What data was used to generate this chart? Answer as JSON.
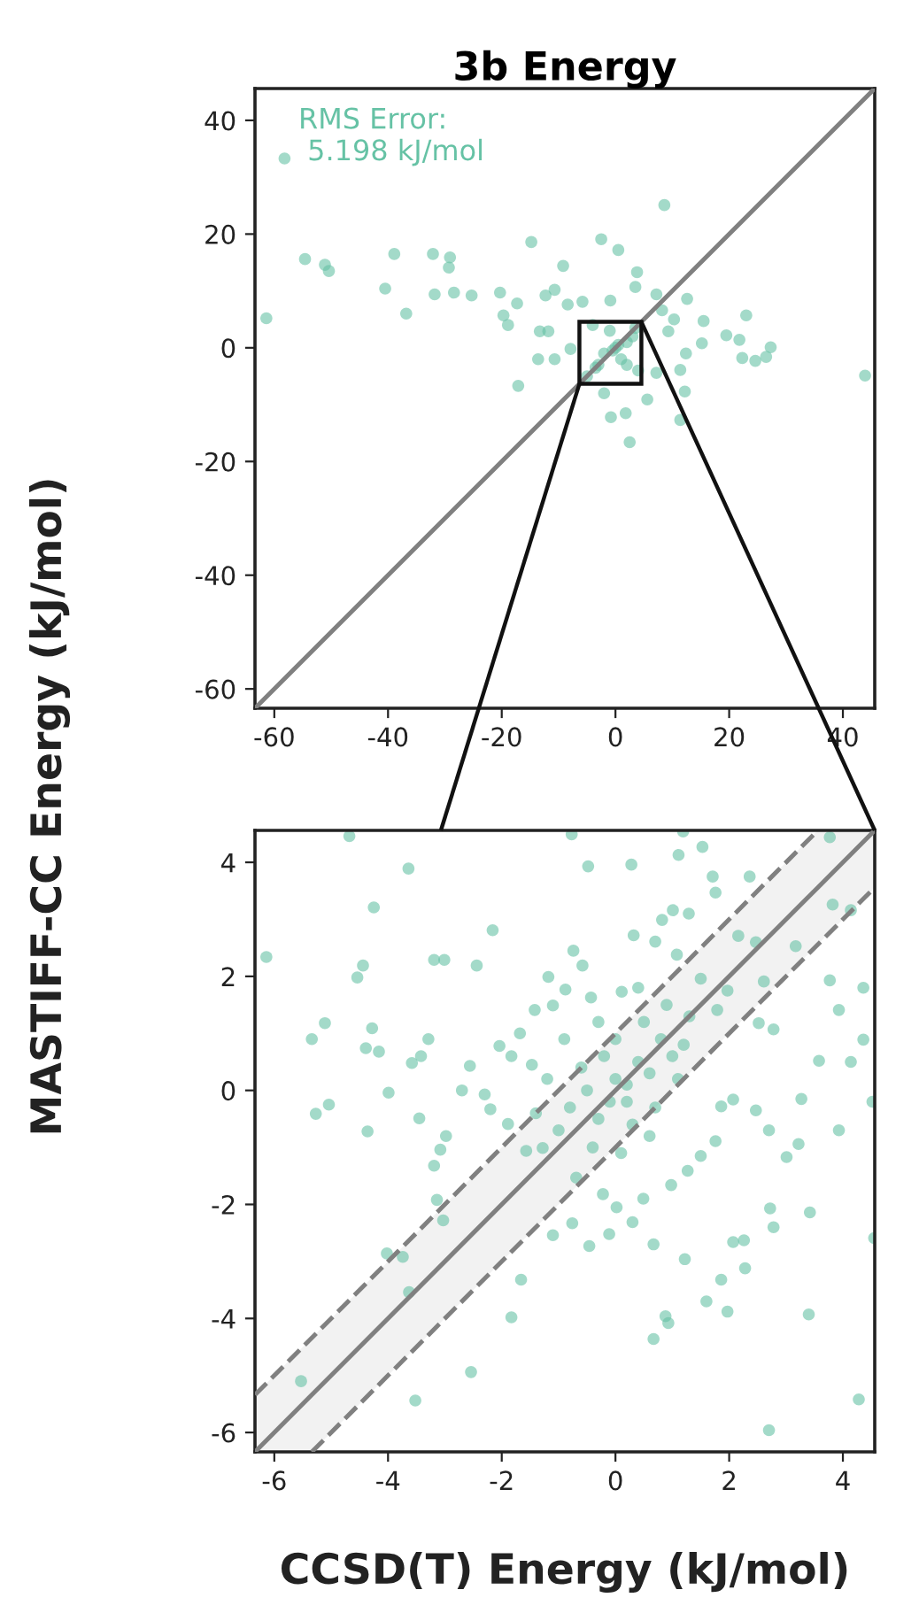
{
  "chart_data": [
    {
      "type": "scatter",
      "title": "3b Energy",
      "ylabel": "MASTIFF-CC Energy (kJ/mol)",
      "annotations": [
        "RMS Error:\n 5.198 kJ/mol"
      ],
      "xlim": [
        -63.4,
        45.6
      ],
      "ylim": [
        -63.4,
        45.6
      ],
      "xticks": [
        -60,
        -40,
        -20,
        0,
        20,
        40
      ],
      "yticks": [
        40,
        20,
        0,
        -20,
        -40,
        -60
      ],
      "grid": false,
      "series": [
        {
          "type": "scatter",
          "marker": "circle",
          "color": "#66c2a5",
          "x": [
            -58.2,
            -61.4,
            -54.6,
            -51.1,
            -50.4,
            -40.5,
            -38.9,
            -36.8,
            -32.1,
            -29.1,
            -29.3,
            -31.8,
            -28.4,
            -25.3,
            -20.3,
            -14.8,
            -17.3,
            -19.7,
            -18.9,
            -17.1,
            -12.3,
            -10.7,
            -9.2,
            -2.5,
            0.5,
            3.8,
            8.6,
            3.5,
            12.6,
            23.0,
            27.3,
            43.9,
            19.5,
            21.8,
            22.3,
            24.6,
            26.5,
            15.5,
            15.2,
            12.4,
            10.3,
            12.2,
            11.4,
            2.5,
            -0.8,
            1.8,
            -2.0,
            5.6,
            -13.6,
            -10.7,
            -13.3,
            -7.9,
            -8.4,
            -5.8,
            -0.9,
            7.2,
            8.2,
            9.3,
            7.2,
            11.4,
            -11.8,
            0.0,
            2.0,
            -2.0,
            3.0,
            -3.0,
            1.0,
            -1.0,
            4.0,
            -4.0,
            2.0,
            -5.0,
            0.5,
            -0.5,
            3.5,
            -3.5
          ],
          "values": [
            33.3,
            5.2,
            15.6,
            14.6,
            13.5,
            10.4,
            16.5,
            6.0,
            16.5,
            15.9,
            14.1,
            9.4,
            9.7,
            9.2,
            9.7,
            18.6,
            7.8,
            5.7,
            4.0,
            -6.7,
            9.2,
            10.2,
            14.4,
            19.1,
            17.2,
            13.3,
            25.1,
            10.7,
            8.6,
            5.7,
            0.1,
            -4.9,
            2.2,
            1.4,
            -1.8,
            -2.3,
            -1.6,
            4.7,
            0.8,
            -1.0,
            5.0,
            -7.7,
            -12.7,
            -16.6,
            -12.2,
            -11.5,
            -8.0,
            -9.1,
            -2.0,
            -2.0,
            2.9,
            -0.2,
            7.6,
            8.1,
            8.3,
            9.4,
            6.6,
            2.9,
            -4.4,
            -3.9,
            2.9,
            0.0,
            1.0,
            -1.0,
            2.0,
            -3.0,
            -2.0,
            3.0,
            -4.0,
            4.0,
            -3.0,
            -5.0,
            0.5,
            -0.5,
            3.5,
            -3.5
          ]
        },
        {
          "type": "line",
          "color": "#808080",
          "line_style": "solid",
          "x": [
            -63.4,
            45.6
          ],
          "values": [
            -63.4,
            45.6
          ]
        }
      ]
    },
    {
      "type": "scatter",
      "xlabel": "CCSD(T) Energy (kJ/mol)",
      "xlim": [
        -6.34,
        4.56
      ],
      "ylim": [
        -6.34,
        4.56
      ],
      "xticks": [
        -6,
        -4,
        -2,
        0,
        2,
        4
      ],
      "yticks": [
        4,
        2,
        0,
        -2,
        -4,
        -6
      ],
      "grid": false,
      "series": [
        {
          "type": "scatter",
          "marker": "circle",
          "color": "#66c2a5",
          "x": [
            -4.68,
            -0.77,
            1.19,
            -3.64,
            -0.48,
            0.28,
            1.53,
            1.11,
            3.77,
            -4.25,
            -2.16,
            -6.14,
            -4.54,
            -4.44,
            -3.19,
            -3.01,
            -2.44,
            -5.34,
            -5.11,
            -4.28,
            -4.39,
            -4.16,
            -3.58,
            -3.42,
            -3.29,
            -5.27,
            -5.04,
            -4.36,
            -3.99,
            -3.45,
            -2.98,
            -3.08,
            -3.19,
            -3.14,
            -3.03,
            -4.02,
            -3.74,
            -3.63,
            -5.53,
            -2.54,
            -3.52,
            -1.66,
            -1.83,
            -1.1,
            -0.76,
            -0.46,
            -0.11,
            0.3,
            0.67,
            1.22,
            0.88,
            0.93,
            0.67,
            1.86,
            1.6,
            1.97,
            2.07,
            2.26,
            2.28,
            2.72,
            2.78,
            3.42,
            3.4,
            2.7,
            4.28,
            4.55,
            4.52,
            4.36,
            3.77,
            3.93,
            4.36,
            4.14,
            3.58,
            3.93,
            3.27,
            3.22,
            3.01,
            2.7,
            2.47,
            2.07,
            1.86,
            1.76,
            1.5,
            1.27,
            0.98,
            0.49,
            0.02,
            -0.22,
            -0.69,
            -1.28,
            -1.57,
            -1.89,
            -2.2,
            -2.3,
            -2.56,
            -2.7,
            -2.04,
            -1.83,
            -1.47,
            -1.68,
            -1.42,
            -1.1,
            -0.88,
            -1.18,
            -0.74,
            -0.58,
            -0.43,
            0.11,
            0.32,
            0.7,
            0.82,
            1.01,
            1.29,
            1.08,
            1.5,
            1.79,
            1.97,
            2.16,
            2.47,
            2.61,
            2.52,
            2.78,
            3.17,
            2.36,
            1.71,
            1.76,
            3.82,
            4.14,
            -0.8,
            -0.5,
            -0.3,
            0.0,
            0.2,
            0.4,
            0.6,
            0.8,
            1.0,
            -0.6,
            -0.2,
            0.3,
            0.5,
            0.9,
            -1.0,
            -0.4,
            0.1,
            0.7,
            1.2,
            0.0,
            -1.2,
            0.4,
            -0.9,
            1.3,
            0.2,
            -0.1,
            0.6,
            -1.4,
            1.1,
            -0.3
          ],
          "values": [
            4.46,
            4.49,
            4.54,
            3.89,
            3.93,
            3.96,
            4.27,
            4.13,
            4.44,
            3.21,
            2.81,
            2.34,
            1.98,
            2.19,
            2.29,
            2.29,
            2.19,
            0.9,
            1.18,
            1.09,
            0.74,
            0.68,
            0.48,
            0.6,
            0.9,
            -0.41,
            -0.25,
            -0.72,
            -0.04,
            -0.49,
            -0.8,
            -1.04,
            -1.32,
            -1.92,
            -2.28,
            -2.86,
            -2.92,
            -3.54,
            -5.1,
            -4.94,
            -5.44,
            -3.32,
            -3.98,
            -2.54,
            -2.33,
            -2.73,
            -2.52,
            -2.31,
            -2.7,
            -2.96,
            -3.96,
            -4.08,
            -4.36,
            -3.32,
            -3.7,
            -3.88,
            -2.66,
            -2.63,
            -3.12,
            -2.07,
            -2.4,
            -2.14,
            -3.93,
            -5.96,
            -5.42,
            -2.59,
            -0.2,
            0.89,
            1.93,
            1.41,
            1.8,
            0.5,
            0.52,
            -0.7,
            -0.15,
            -0.94,
            -1.17,
            -0.7,
            -0.35,
            -0.16,
            -0.28,
            -0.89,
            -1.15,
            -1.41,
            -1.66,
            -1.9,
            -2.05,
            -1.82,
            -1.53,
            -1.01,
            -1.06,
            -0.59,
            -0.33,
            -0.07,
            0.43,
            0.0,
            0.78,
            0.6,
            0.45,
            1.0,
            1.41,
            1.49,
            1.77,
            1.99,
            2.45,
            2.19,
            1.63,
            1.73,
            2.72,
            2.61,
            2.99,
            3.16,
            3.1,
            2.38,
            1.96,
            1.41,
            1.75,
            2.71,
            2.6,
            1.91,
            1.18,
            1.07,
            2.53,
            3.75,
            3.75,
            3.47,
            3.26,
            3.16,
            -0.3,
            0.0,
            -0.5,
            0.2,
            -0.2,
            0.5,
            0.3,
            0.9,
            0.6,
            0.4,
            0.6,
            -0.6,
            1.2,
            1.5,
            -0.7,
            -1.0,
            -1.1,
            -0.3,
            0.8,
            0.9,
            0.2,
            1.8,
            0.9,
            1.3,
            0.1,
            -0.2,
            -0.8,
            -0.4,
            0.2,
            1.2
          ]
        },
        {
          "type": "line",
          "color": "#808080",
          "line_style": "solid",
          "x": [
            -6.34,
            -5.34,
            3.56,
            4.56
          ],
          "values": [
            -6.34,
            -5.34,
            3.56,
            4.56
          ],
          "lower": [
            -6.34,
            -6.34,
            2.56,
            3.56
          ],
          "upper": [
            -5.34,
            -4.34,
            4.56,
            4.56
          ]
        },
        {
          "type": "line",
          "color": "#808080",
          "line_style": "dashed",
          "x": [
            -6.34,
            3.56
          ],
          "values": [
            -5.34,
            4.56
          ]
        },
        {
          "type": "line",
          "color": "#808080",
          "line_style": "dashed",
          "x": [
            -5.34,
            4.56
          ],
          "values": [
            -6.34,
            3.56
          ]
        }
      ]
    }
  ]
}
